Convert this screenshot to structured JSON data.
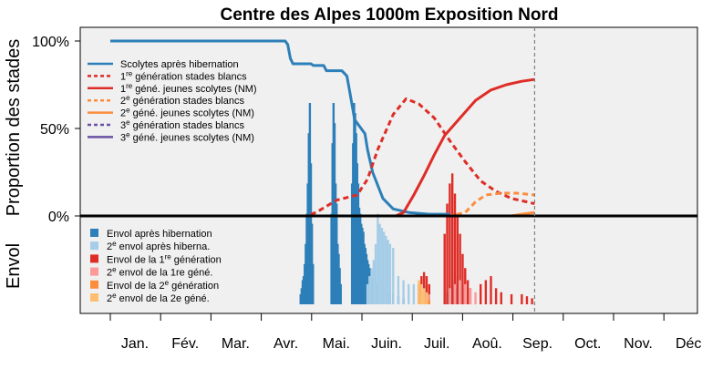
{
  "chart_data": {
    "type": "line",
    "title": "Centre des Alpes 1000m Exposition Nord",
    "ylabel_top": "Proportion des stades",
    "ylabel_bottom": "Envol",
    "y_ticks": [
      "100%",
      "50%",
      "0%"
    ],
    "y_tick_values": [
      100,
      50,
      0
    ],
    "ylim": [
      0,
      108
    ],
    "x_ticks": [
      "Jan.",
      "Fév.",
      "Mar.",
      "Avr.",
      "Mai.",
      "Juin.",
      "Juil.",
      "Aoû.",
      "Sep.",
      "Oct.",
      "Nov.",
      "Déc"
    ],
    "x_unit": "month (1 = start of January, 13 = end of December)",
    "xlim": [
      1,
      13
    ],
    "grid": false,
    "legend_position": "top-left",
    "vline_x": 9.25,
    "lines": [
      {
        "name": "Scolytes après hibernation",
        "color": "#2c7fb8",
        "dash": "solid",
        "points": [
          [
            1,
            100
          ],
          [
            4.4,
            100
          ],
          [
            4.45,
            98
          ],
          [
            4.5,
            90
          ],
          [
            4.55,
            87
          ],
          [
            4.9,
            87
          ],
          [
            4.95,
            86
          ],
          [
            5.15,
            86
          ],
          [
            5.2,
            83
          ],
          [
            5.5,
            83
          ],
          [
            5.6,
            80
          ],
          [
            5.65,
            72
          ],
          [
            5.75,
            55
          ],
          [
            5.8,
            53
          ],
          [
            5.95,
            47
          ],
          [
            6.0,
            38
          ],
          [
            6.1,
            25
          ],
          [
            6.3,
            10
          ],
          [
            6.5,
            4
          ],
          [
            6.8,
            2
          ],
          [
            7.2,
            1
          ],
          [
            7.6,
            1
          ]
        ]
      },
      {
        "name": "1re génération stades blancs",
        "color": "#de2d26",
        "dash": "dotted",
        "points": [
          [
            1,
            0
          ],
          [
            4.8,
            0
          ],
          [
            5.0,
            2
          ],
          [
            5.4,
            9
          ],
          [
            5.8,
            12
          ],
          [
            6.0,
            21
          ],
          [
            6.2,
            38
          ],
          [
            6.5,
            58
          ],
          [
            6.75,
            67
          ],
          [
            7.0,
            64
          ],
          [
            7.3,
            56
          ],
          [
            7.6,
            43
          ],
          [
            7.9,
            31
          ],
          [
            8.2,
            20
          ],
          [
            8.5,
            14
          ],
          [
            8.8,
            10
          ],
          [
            9.1,
            8
          ],
          [
            9.25,
            7
          ]
        ]
      },
      {
        "name": "1re géné. jeunes scolytes (NM)",
        "color": "#de2d26",
        "dash": "solid",
        "points": [
          [
            1,
            0
          ],
          [
            6.55,
            0
          ],
          [
            6.7,
            2
          ],
          [
            6.9,
            12
          ],
          [
            7.1,
            23
          ],
          [
            7.3,
            35
          ],
          [
            7.5,
            46
          ],
          [
            7.8,
            56
          ],
          [
            8.1,
            66
          ],
          [
            8.4,
            72
          ],
          [
            8.7,
            75
          ],
          [
            9.0,
            77
          ],
          [
            9.25,
            78
          ]
        ]
      },
      {
        "name": "2e génération stades blancs",
        "color": "#fd8d3c",
        "dash": "dotted",
        "points": [
          [
            1,
            0
          ],
          [
            7.6,
            0
          ],
          [
            7.9,
            2
          ],
          [
            8.1,
            8
          ],
          [
            8.3,
            12
          ],
          [
            8.6,
            13
          ],
          [
            8.9,
            13
          ],
          [
            9.25,
            12
          ]
        ]
      },
      {
        "name": "2e géné. jeunes scolytes (NM)",
        "color": "#fd8d3c",
        "dash": "solid",
        "points": [
          [
            1,
            0
          ],
          [
            8.8,
            0
          ],
          [
            9.0,
            1
          ],
          [
            9.25,
            2
          ]
        ]
      },
      {
        "name": "3e génération stades blancs",
        "color": "#6a51a3",
        "dash": "dotted",
        "points": [
          [
            1,
            0
          ],
          [
            9.25,
            0
          ]
        ]
      },
      {
        "name": "3e géné. jeunes scolytes (NM)",
        "color": "#6a51a3",
        "dash": "solid",
        "points": [
          [
            1,
            0
          ],
          [
            9.25,
            0
          ]
        ]
      }
    ],
    "legend_lines": [
      {
        "name": "Scolytes après hibernation",
        "color": "#2c7fb8",
        "dash": "solid"
      },
      {
        "name": "1re génération stades blancs",
        "color": "#de2d26",
        "dash": "dotted"
      },
      {
        "name": "1re géné. jeunes scolytes (NM)",
        "color": "#de2d26",
        "dash": "solid"
      },
      {
        "name": "2e génération stades blancs",
        "color": "#fd8d3c",
        "dash": "dotted"
      },
      {
        "name": "2e géné. jeunes scolytes (NM)",
        "color": "#fd8d3c",
        "dash": "solid"
      },
      {
        "name": "3e génération stades blancs",
        "color": "#6a51a3",
        "dash": "dotted"
      },
      {
        "name": "3e géné. jeunes scolytes (NM)",
        "color": "#6a51a3",
        "dash": "solid"
      }
    ],
    "envol_series_legend": [
      {
        "name": "Envol après hibernation",
        "color": "#2c7fb8"
      },
      {
        "name": "2e envol après hiberna.",
        "color": "#a6cde8"
      },
      {
        "name": "Envol de la 1re génération",
        "color": "#de2d26"
      },
      {
        "name": "2e envol de la 1re géné.",
        "color": "#fb9a99"
      },
      {
        "name": "Envol de la 2e génération",
        "color": "#fd8d3c"
      },
      {
        "name": "2e envol de la 2e géné.",
        "color": "#fdbf6f"
      }
    ],
    "envol_bars": [
      {
        "series": "Envol après hibernation",
        "color": "#2c7fb8",
        "x": [
          4.7,
          4.72,
          4.74,
          4.76,
          4.78,
          4.8,
          4.82,
          4.84,
          4.86,
          4.88,
          4.9,
          4.92,
          4.94,
          5.3,
          5.32,
          5.34,
          5.36,
          5.38,
          5.4,
          5.42,
          5.44,
          5.46,
          5.48,
          5.7,
          5.72,
          5.74,
          5.76,
          5.78,
          5.8,
          5.82,
          5.84,
          5.86,
          5.88,
          5.9,
          5.92,
          5.94,
          5.96,
          5.98,
          6.0,
          6.02,
          6.04,
          6.06,
          6.1,
          6.14,
          6.18,
          6.22,
          6.3,
          6.4,
          6.5,
          6.6,
          6.7,
          7.55,
          7.6,
          7.65,
          7.7,
          7.75
        ],
        "values": [
          5,
          8,
          12,
          14,
          20,
          30,
          45,
          60,
          85,
          100,
          70,
          40,
          20,
          45,
          80,
          100,
          90,
          60,
          50,
          30,
          25,
          18,
          10,
          60,
          80,
          100,
          95,
          85,
          70,
          60,
          48,
          45,
          40,
          38,
          36,
          30,
          28,
          25,
          22,
          20,
          18,
          15,
          13,
          12,
          10,
          8,
          7,
          6,
          5,
          4,
          3,
          6,
          8,
          10,
          8,
          6
        ]
      },
      {
        "series": "2e envol après hiberna.",
        "color": "#a6cde8",
        "x": [
          6.0,
          6.04,
          6.08,
          6.12,
          6.16,
          6.2,
          6.24,
          6.28,
          6.32,
          6.36,
          6.4,
          6.44,
          6.5,
          6.6,
          6.7,
          6.8,
          6.9,
          7.0,
          7.1,
          7.2,
          7.6,
          7.65,
          7.7,
          7.75,
          7.8,
          7.85,
          7.9
        ],
        "values": [
          10,
          14,
          18,
          22,
          30,
          45,
          40,
          38,
          36,
          34,
          32,
          30,
          28,
          14,
          12,
          10,
          10,
          10,
          10,
          8,
          10,
          12,
          14,
          12,
          10,
          8,
          6
        ]
      },
      {
        "series": "Envol de la 1re génération",
        "color": "#de2d26",
        "x": [
          7.0,
          7.05,
          7.1,
          7.15,
          7.2,
          7.5,
          7.55,
          7.6,
          7.65,
          7.7,
          7.75,
          7.8,
          7.85,
          7.9,
          7.95,
          8.0,
          8.2,
          8.3,
          8.4,
          8.5,
          8.6,
          8.8,
          9.0,
          9.1,
          9.2
        ],
        "values": [
          10,
          14,
          16,
          14,
          10,
          35,
          50,
          60,
          65,
          55,
          45,
          35,
          25,
          18,
          12,
          8,
          10,
          12,
          14,
          8,
          6,
          5,
          5,
          4,
          3
        ]
      },
      {
        "series": "2e envol de la 1re géné.",
        "color": "#fb9a99",
        "x": [
          7.0,
          7.1,
          7.2,
          7.6,
          7.7,
          7.8,
          7.9,
          8.0,
          8.1
        ],
        "values": [
          4,
          6,
          5,
          8,
          10,
          12,
          10,
          8,
          6
        ]
      },
      {
        "series": "Envol de la 2e génération",
        "color": "#fd8d3c",
        "x": [
          7.0,
          7.05,
          7.1,
          7.15,
          7.2
        ],
        "values": [
          5,
          4,
          4,
          3,
          2
        ]
      },
      {
        "series": "2e envol de la 2e géné.",
        "color": "#fdbf6f",
        "x": [
          7.0,
          7.05,
          7.1,
          7.15
        ],
        "values": [
          12,
          10,
          8,
          6
        ]
      }
    ]
  }
}
